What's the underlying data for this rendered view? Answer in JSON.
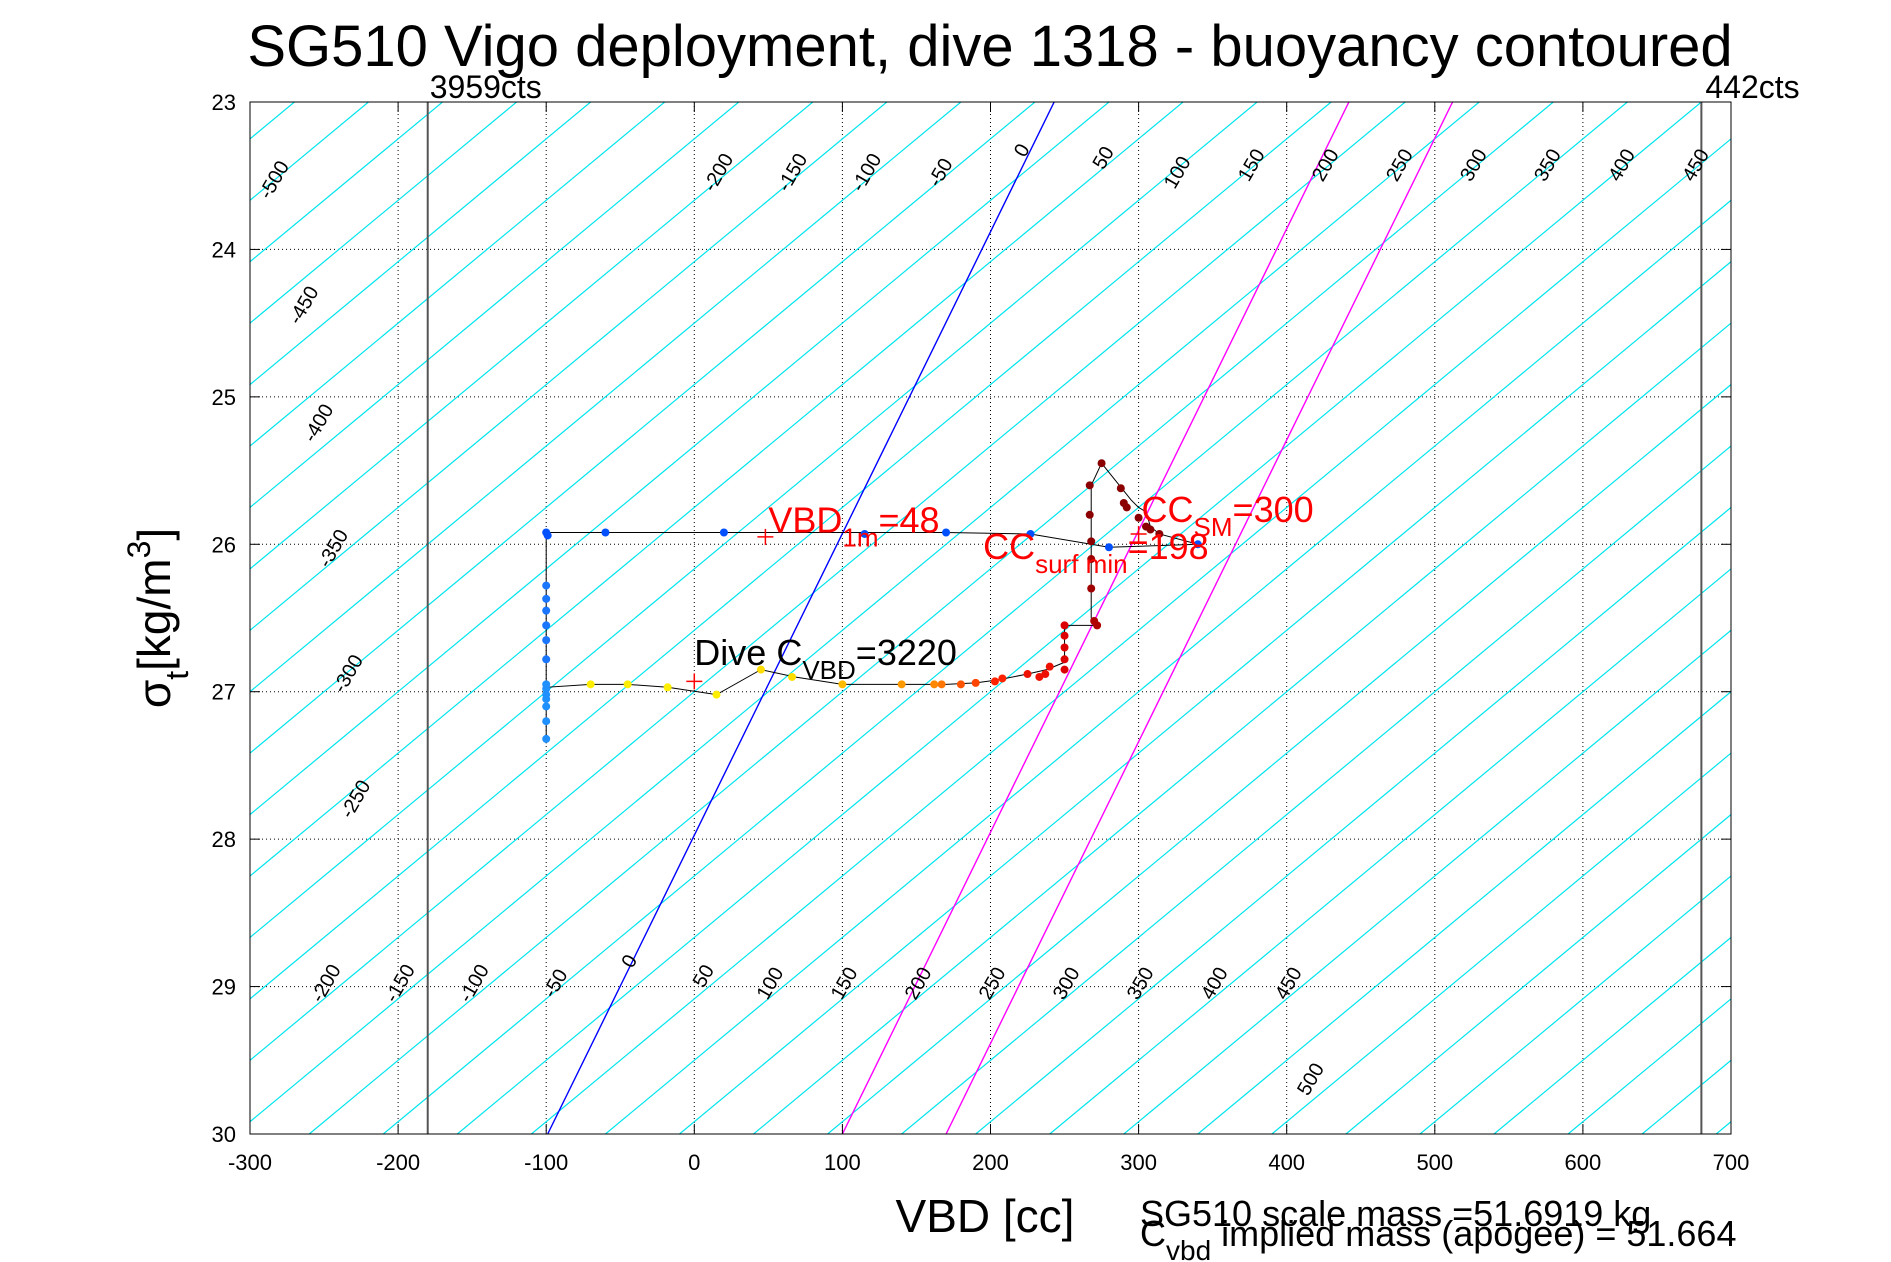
{
  "chart_data": {
    "type": "scatter",
    "title": "SG510 Vigo deployment, dive 1318 - buoyancy contoured",
    "xlabel": "VBD [cc]",
    "ylabel_main": "σ",
    "ylabel_sub": "t",
    "ylabel_unit": "[kg/m",
    "ylabel_sup": "3",
    "ylabel_close": "]",
    "xlim": [
      -300,
      700
    ],
    "ylim": [
      23,
      30
    ],
    "grid": true,
    "xticks": [
      "-300",
      "-200",
      "-100",
      "0",
      "100",
      "200",
      "300",
      "400",
      "500",
      "600",
      "700"
    ],
    "yticks": [
      "23",
      "24",
      "25",
      "26",
      "27",
      "28",
      "29",
      "30"
    ],
    "vbd_limits": [
      {
        "x": -180,
        "label": "3959cts"
      },
      {
        "x": 680,
        "label": "442cts"
      }
    ],
    "contour_slope_cc_per_sigma": 120,
    "contours": [
      -500,
      -450,
      -400,
      -350,
      -300,
      -250,
      -200,
      -150,
      -100,
      -50,
      0,
      50,
      100,
      150,
      200,
      250,
      300,
      350,
      400,
      450,
      500
    ],
    "contour_labels": [
      {
        "text": "-500",
        "x": -280,
        "y": 23.55
      },
      {
        "text": "-450",
        "x": -260,
        "y": 24.4
      },
      {
        "text": "-400",
        "x": -250,
        "y": 25.2
      },
      {
        "text": "-350",
        "x": -240,
        "y": 26.05
      },
      {
        "text": "-300",
        "x": -230,
        "y": 26.9
      },
      {
        "text": "-250",
        "x": -225,
        "y": 27.75
      },
      {
        "text": "-200",
        "x": 20,
        "y": 23.5
      },
      {
        "text": "-150",
        "x": 70,
        "y": 23.5
      },
      {
        "text": "-100",
        "x": 120,
        "y": 23.5
      },
      {
        "text": "-50",
        "x": 170,
        "y": 23.5
      },
      {
        "text": "0",
        "x": 225,
        "y": 23.35
      },
      {
        "text": "50",
        "x": 280,
        "y": 23.4
      },
      {
        "text": "100",
        "x": 330,
        "y": 23.5
      },
      {
        "text": "150",
        "x": 380,
        "y": 23.45
      },
      {
        "text": "200",
        "x": 430,
        "y": 23.45
      },
      {
        "text": "250",
        "x": 480,
        "y": 23.45
      },
      {
        "text": "300",
        "x": 530,
        "y": 23.45
      },
      {
        "text": "350",
        "x": 580,
        "y": 23.45
      },
      {
        "text": "400",
        "x": 630,
        "y": 23.45
      },
      {
        "text": "450",
        "x": 680,
        "y": 23.45
      },
      {
        "text": "-200",
        "x": -245,
        "y": 29.0
      },
      {
        "text": "-150",
        "x": -195,
        "y": 29.0
      },
      {
        "text": "-100",
        "x": -145,
        "y": 29.0
      },
      {
        "text": "-50",
        "x": -90,
        "y": 29.0
      },
      {
        "text": "0",
        "x": -40,
        "y": 28.85
      },
      {
        "text": "50",
        "x": 10,
        "y": 28.95
      },
      {
        "text": "100",
        "x": 55,
        "y": 29.0
      },
      {
        "text": "150",
        "x": 105,
        "y": 29.0
      },
      {
        "text": "200",
        "x": 155,
        "y": 29.0
      },
      {
        "text": "250",
        "x": 205,
        "y": 29.0
      },
      {
        "text": "300",
        "x": 255,
        "y": 29.0
      },
      {
        "text": "350",
        "x": 305,
        "y": 29.0
      },
      {
        "text": "400",
        "x": 355,
        "y": 29.0
      },
      {
        "text": "450",
        "x": 405,
        "y": 29.0
      },
      {
        "text": "500",
        "x": 420,
        "y": 29.65
      }
    ],
    "zero_line": {
      "x0": -99,
      "y0": 30,
      "x1": 243,
      "y1": 23,
      "color": "#0000ff"
    },
    "magenta_lines": [
      {
        "x0": 100,
        "y0": 30,
        "x1": 442,
        "y1": 23
      },
      {
        "x0": 170,
        "y0": 30,
        "x1": 512,
        "y1": 23
      }
    ],
    "trajectory": [
      [
        -100,
        25.92
      ],
      [
        -60,
        25.92
      ],
      [
        20,
        25.92
      ],
      [
        170,
        25.92
      ],
      [
        227,
        25.93
      ],
      [
        280,
        26.02
      ],
      [
        340,
        26.0
      ],
      [
        314,
        25.93
      ],
      [
        308,
        25.88
      ],
      [
        305,
        25.78
      ],
      [
        300,
        25.75
      ],
      [
        295,
        25.7
      ],
      [
        283,
        25.55
      ],
      [
        275,
        25.45
      ],
      [
        268,
        25.6
      ],
      [
        268,
        25.8
      ],
      [
        268,
        26.0
      ],
      [
        268,
        26.35
      ],
      [
        268,
        26.5
      ],
      [
        272,
        26.55
      ],
      [
        250,
        26.55
      ],
      [
        250,
        26.8
      ],
      [
        238,
        26.85
      ],
      [
        225,
        26.88
      ],
      [
        205,
        26.92
      ],
      [
        190,
        26.94
      ],
      [
        170,
        26.95
      ],
      [
        140,
        26.95
      ],
      [
        100,
        26.95
      ],
      [
        68,
        26.9
      ],
      [
        45,
        26.85
      ],
      [
        15,
        27.02
      ],
      [
        -18,
        26.97
      ],
      [
        -45,
        26.95
      ],
      [
        -70,
        26.95
      ],
      [
        -100,
        26.97
      ],
      [
        -100,
        27.35
      ],
      [
        -100,
        25.92
      ]
    ],
    "points": [
      {
        "x": -100,
        "y": 25.92,
        "color": "#0050ff"
      },
      {
        "x": -99,
        "y": 25.94,
        "color": "#0050ff"
      },
      {
        "x": -60,
        "y": 25.92,
        "color": "#0050ff"
      },
      {
        "x": 20,
        "y": 25.92,
        "color": "#0050ff"
      },
      {
        "x": 115,
        "y": 25.93,
        "color": "#0050ff"
      },
      {
        "x": 170,
        "y": 25.92,
        "color": "#0050ff"
      },
      {
        "x": 227,
        "y": 25.93,
        "color": "#0050ff"
      },
      {
        "x": 280,
        "y": 26.02,
        "color": "#0050ff"
      },
      {
        "x": 340,
        "y": 26.0,
        "color": "#0050ff"
      },
      {
        "x": 275,
        "y": 25.45,
        "color": "#8b0000"
      },
      {
        "x": 267,
        "y": 25.6,
        "color": "#8b0000"
      },
      {
        "x": 267,
        "y": 25.8,
        "color": "#8b0000"
      },
      {
        "x": 268,
        "y": 25.98,
        "color": "#8b0000"
      },
      {
        "x": 288,
        "y": 25.62,
        "color": "#8b0000"
      },
      {
        "x": 290,
        "y": 25.72,
        "color": "#8b0000"
      },
      {
        "x": 292,
        "y": 25.75,
        "color": "#8b0000"
      },
      {
        "x": 300,
        "y": 25.82,
        "color": "#8b0000"
      },
      {
        "x": 305,
        "y": 25.88,
        "color": "#8b0000"
      },
      {
        "x": 308,
        "y": 25.9,
        "color": "#8b0000"
      },
      {
        "x": 314,
        "y": 25.93,
        "color": "#8b0000"
      },
      {
        "x": 268,
        "y": 26.1,
        "color": "#a00000"
      },
      {
        "x": 268,
        "y": 26.3,
        "color": "#a00000"
      },
      {
        "x": 270,
        "y": 26.52,
        "color": "#b00000"
      },
      {
        "x": 272,
        "y": 26.55,
        "color": "#b00000"
      },
      {
        "x": 250,
        "y": 26.55,
        "color": "#dd0000"
      },
      {
        "x": 250,
        "y": 26.62,
        "color": "#dd0000"
      },
      {
        "x": 250,
        "y": 26.7,
        "color": "#dd0000"
      },
      {
        "x": 250,
        "y": 26.78,
        "color": "#dd0000"
      },
      {
        "x": 250,
        "y": 26.85,
        "color": "#dd0000"
      },
      {
        "x": 240,
        "y": 26.83,
        "color": "#ee1100"
      },
      {
        "x": 237,
        "y": 26.88,
        "color": "#ee1100"
      },
      {
        "x": 233,
        "y": 26.9,
        "color": "#ee1100"
      },
      {
        "x": 225,
        "y": 26.88,
        "color": "#ee1100"
      },
      {
        "x": 208,
        "y": 26.91,
        "color": "#ff2200"
      },
      {
        "x": 203,
        "y": 26.93,
        "color": "#ff2200"
      },
      {
        "x": 190,
        "y": 26.94,
        "color": "#ff4400"
      },
      {
        "x": 180,
        "y": 26.95,
        "color": "#ff5500"
      },
      {
        "x": 167,
        "y": 26.95,
        "color": "#ff7700"
      },
      {
        "x": 162,
        "y": 26.95,
        "color": "#ff8800"
      },
      {
        "x": 140,
        "y": 26.95,
        "color": "#ff9900"
      },
      {
        "x": 100,
        "y": 26.95,
        "color": "#ffbb00"
      },
      {
        "x": 66,
        "y": 26.9,
        "color": "#ffdd00"
      },
      {
        "x": 45,
        "y": 26.85,
        "color": "#ffdd00"
      },
      {
        "x": 15,
        "y": 27.02,
        "color": "#ffee00"
      },
      {
        "x": -18,
        "y": 26.97,
        "color": "#ffee00"
      },
      {
        "x": -45,
        "y": 26.95,
        "color": "#ffee00"
      },
      {
        "x": -70,
        "y": 26.95,
        "color": "#ffee00"
      },
      {
        "x": -100,
        "y": 26.28,
        "color": "#1a75ff"
      },
      {
        "x": -100,
        "y": 26.37,
        "color": "#1a75ff"
      },
      {
        "x": -100,
        "y": 26.45,
        "color": "#1a75ff"
      },
      {
        "x": -100,
        "y": 26.55,
        "color": "#1a75ff"
      },
      {
        "x": -100,
        "y": 26.65,
        "color": "#1a75ff"
      },
      {
        "x": -100,
        "y": 26.78,
        "color": "#1a75ff"
      },
      {
        "x": -100,
        "y": 26.95,
        "color": "#2090ff"
      },
      {
        "x": -100,
        "y": 26.98,
        "color": "#2090ff"
      },
      {
        "x": -100,
        "y": 27.02,
        "color": "#2090ff"
      },
      {
        "x": -100,
        "y": 27.05,
        "color": "#2090ff"
      },
      {
        "x": -100,
        "y": 27.1,
        "color": "#2090ff"
      },
      {
        "x": -100,
        "y": 27.2,
        "color": "#2090ff"
      },
      {
        "x": -100,
        "y": 27.32,
        "color": "#2090ff"
      }
    ],
    "crosses": [
      {
        "x": 48,
        "y": 25.95
      },
      {
        "x": 0,
        "y": 26.93
      },
      {
        "x": 300,
        "y": 25.93
      }
    ],
    "annotations": {
      "vbd1m": {
        "base": "VBD",
        "sub": "1m",
        "tail": "=48",
        "x": 50,
        "y": 25.92
      },
      "cc_sm": {
        "base": "CC",
        "sub": "SM",
        "tail": "=300",
        "x": 302,
        "y": 25.85
      },
      "cc_surf": {
        "base": "CC",
        "sub": "surf min",
        "tail": "=198",
        "x": 195,
        "y": 26.1
      },
      "dive_cvbd": {
        "base": "Dive C",
        "sub": "VBD",
        "tail": "=3220",
        "x": 0,
        "y": 26.82
      }
    },
    "colors": {
      "axis": "#000000",
      "grid": "#000000",
      "contour": "#00e5ee",
      "zero_line": "#0000ff",
      "magenta": "#ff00ff",
      "limit_line": "#555555",
      "annotation": "#ff0000",
      "cross": "#ff0000"
    }
  },
  "footer": {
    "scale_mass": "SG510 scale mass =51.6919 kg",
    "implied_base": "C",
    "implied_sub": "vbd",
    "implied_tail": " implied mass (apogee) = 51.664"
  }
}
